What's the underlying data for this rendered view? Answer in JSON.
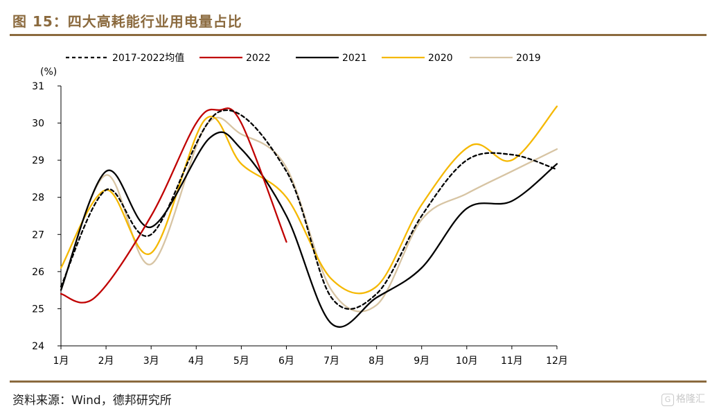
{
  "figure": {
    "title": "图 15：四大高耗能行业用电量占比",
    "source": "资料来源：Wind，德邦研究所",
    "watermark": "格隆汇"
  },
  "chart_data": {
    "type": "line",
    "title": "",
    "xlabel": "",
    "ylabel": "(%)",
    "categories": [
      "1月",
      "2月",
      "3月",
      "4月",
      "5月",
      "6月",
      "7月",
      "8月",
      "9月",
      "10月",
      "11月",
      "12月"
    ],
    "ylim": [
      24,
      31
    ],
    "yticks": [
      24,
      25,
      26,
      27,
      28,
      29,
      30,
      31
    ],
    "grid": false,
    "legend_position": "top",
    "series": [
      {
        "name": "2017-2022均值",
        "color": "#000000",
        "dashed": true,
        "points": [
          [
            0,
            25.6
          ],
          [
            1,
            28.2
          ],
          [
            2,
            27.0
          ],
          [
            3.5,
            30.3
          ],
          [
            5,
            28.7
          ],
          [
            6,
            25.3
          ],
          [
            7,
            25.4
          ],
          [
            8,
            27.5
          ],
          [
            9,
            29.0
          ],
          [
            10,
            29.15
          ],
          [
            11,
            28.75
          ]
        ]
      },
      {
        "name": "2022",
        "color": "#c00000",
        "dashed": false,
        "points": [
          [
            0,
            25.4
          ],
          [
            0.75,
            25.3
          ],
          [
            2,
            27.5
          ],
          [
            3,
            30.0
          ],
          [
            3.5,
            30.35
          ],
          [
            4,
            30.0
          ],
          [
            5,
            26.8
          ]
        ]
      },
      {
        "name": "2021",
        "color": "#000000",
        "dashed": false,
        "points": [
          [
            0,
            25.5
          ],
          [
            1,
            28.7
          ],
          [
            2,
            27.2
          ],
          [
            3.3,
            29.6
          ],
          [
            4,
            29.3
          ],
          [
            5,
            27.5
          ],
          [
            6,
            24.6
          ],
          [
            7,
            25.3
          ],
          [
            8,
            26.1
          ],
          [
            9,
            27.7
          ],
          [
            10,
            27.9
          ],
          [
            11,
            28.9
          ]
        ]
      },
      {
        "name": "2020",
        "color": "#f5b800",
        "dashed": false,
        "points": [
          [
            0,
            26.1
          ],
          [
            1,
            28.2
          ],
          [
            2,
            26.5
          ],
          [
            3.2,
            30.1
          ],
          [
            4,
            28.9
          ],
          [
            5,
            28.0
          ],
          [
            6,
            25.8
          ],
          [
            7,
            25.6
          ],
          [
            8,
            27.8
          ],
          [
            9.1,
            29.4
          ],
          [
            10,
            29.0
          ],
          [
            11,
            30.45
          ]
        ]
      },
      {
        "name": "2019",
        "color": "#d7c4a3",
        "dashed": false,
        "points": [
          [
            0,
            25.5
          ],
          [
            1,
            28.6
          ],
          [
            2,
            26.2
          ],
          [
            3.2,
            29.9
          ],
          [
            4,
            29.7
          ],
          [
            5,
            28.8
          ],
          [
            6,
            25.5
          ],
          [
            7,
            25.1
          ],
          [
            8,
            27.4
          ],
          [
            9,
            28.1
          ],
          [
            10,
            28.7
          ],
          [
            11,
            29.3
          ]
        ]
      }
    ]
  }
}
